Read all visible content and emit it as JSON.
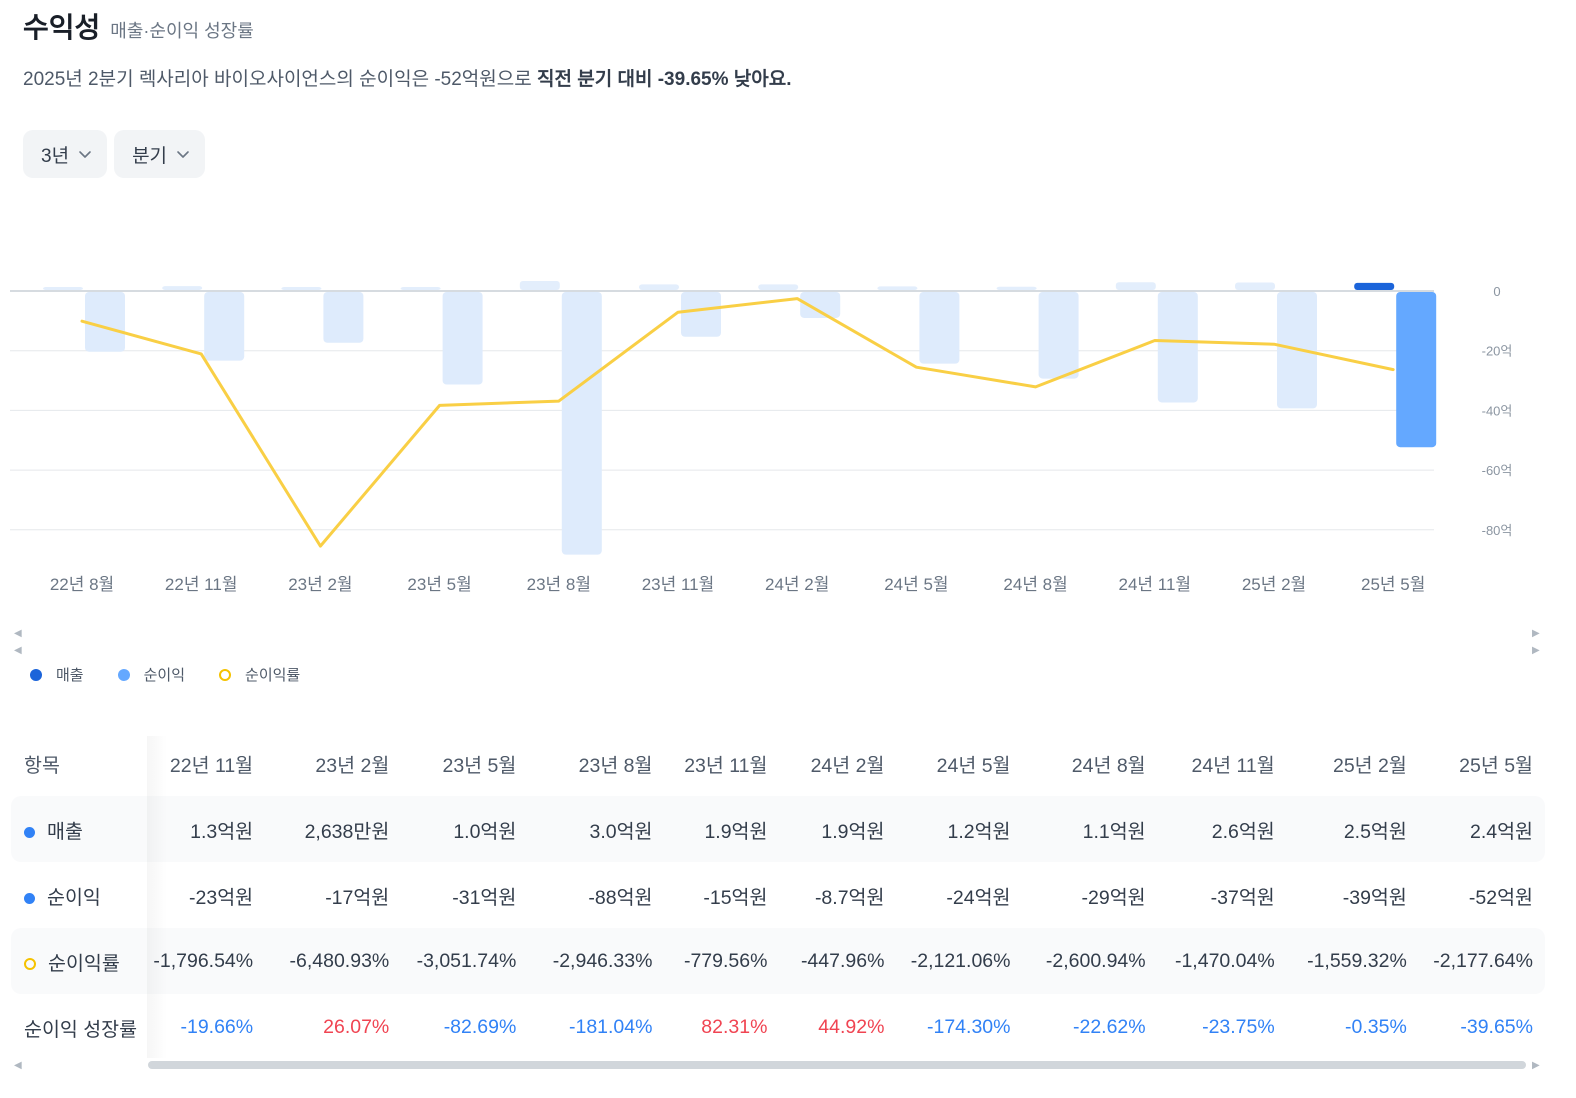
{
  "header": {
    "title": "수익성",
    "subtitle": "매출·순이익 성장률",
    "summary_prefix": "2025년 2분기 렉사리아 바이오사이언스의 순이익은 -52억원으로 ",
    "summary_emphasis": "직전 분기 대비 -39.65% 낮아요."
  },
  "filters": {
    "period": "3년",
    "interval": "분기"
  },
  "legend": [
    {
      "label": "매출",
      "color": "#1b64da"
    },
    {
      "label": "순이익",
      "color": "#64a8ff"
    },
    {
      "label": "순이익률",
      "color": "#f5c200"
    }
  ],
  "chart_data": {
    "type": "bar",
    "categories": [
      "22년 8월",
      "22년 11월",
      "23년 2월",
      "23년 5월",
      "23년 8월",
      "23년 11월",
      "24년 2월",
      "24년 5월",
      "24년 8월",
      "24년 11월",
      "25년 2월",
      "25년 5월"
    ],
    "series": [
      {
        "name": "매출",
        "unit": "억원",
        "values": [
          0.8,
          1.3,
          0.26,
          1.0,
          3.0,
          1.9,
          1.9,
          1.2,
          1.1,
          2.6,
          2.5,
          2.4
        ]
      },
      {
        "name": "순이익",
        "unit": "억원",
        "values": [
          -20,
          -23,
          -17,
          -31,
          -88,
          -15,
          -8.7,
          -24,
          -29,
          -37,
          -39,
          -52
        ]
      },
      {
        "name": "순이익률",
        "unit": "%",
        "values": [
          -1000,
          -1796.54,
          -6480.93,
          -3051.74,
          -2946.33,
          -779.56,
          -447.96,
          -2121.06,
          -2600.94,
          -1470.04,
          -1559.32,
          -2177.64
        ]
      }
    ],
    "y_ticks": [
      "0",
      "-20억",
      "-40억",
      "-60억",
      "-80억"
    ],
    "ylim": [
      -90,
      3
    ],
    "highlight_index": 11,
    "grid": true,
    "legend_position": "bottom-left",
    "colors": {
      "revenue": "#1b64da",
      "revenue_light": "#e3eefc",
      "profit": "#64a8ff",
      "profit_light": "#deebfc",
      "margin": "#f9cf45"
    }
  },
  "table": {
    "header_label": "항목",
    "columns": [
      "22년 11월",
      "23년 2월",
      "23년 5월",
      "23년 8월",
      "23년 11월",
      "24년 2월",
      "24년 5월",
      "24년 8월",
      "24년 11월",
      "25년 2월",
      "25년 5월"
    ],
    "rows": [
      {
        "label": "매출",
        "marker": "dot",
        "color": "#3182f6",
        "values": [
          "1.3억원",
          "2,638만원",
          "1.0억원",
          "3.0억원",
          "1.9억원",
          "1.9억원",
          "1.2억원",
          "1.1억원",
          "2.6억원",
          "2.5억원",
          "2.4억원"
        ]
      },
      {
        "label": "순이익",
        "marker": "dot",
        "color": "#3182f6",
        "values": [
          "-23억원",
          "-17억원",
          "-31억원",
          "-88억원",
          "-15억원",
          "-8.7억원",
          "-24억원",
          "-29억원",
          "-37억원",
          "-39억원",
          "-52억원"
        ]
      },
      {
        "label": "순이익률",
        "marker": "ring",
        "color": "#f5c200",
        "values": [
          "-1,796.54%",
          "-6,480.93%",
          "-3,051.74%",
          "-2,946.33%",
          "-779.56%",
          "-447.96%",
          "-2,121.06%",
          "-2,600.94%",
          "-1,470.04%",
          "-1,559.32%",
          "-2,177.64%"
        ]
      },
      {
        "label": "순이익 성장률",
        "marker": "none",
        "values": [
          "-19.66%",
          "26.07%",
          "-82.69%",
          "-181.04%",
          "82.31%",
          "44.92%",
          "-174.30%",
          "-22.62%",
          "-23.75%",
          "-0.35%",
          "-39.65%"
        ]
      }
    ]
  },
  "colors": {
    "positive": "#f04452",
    "negative": "#3182f6"
  }
}
